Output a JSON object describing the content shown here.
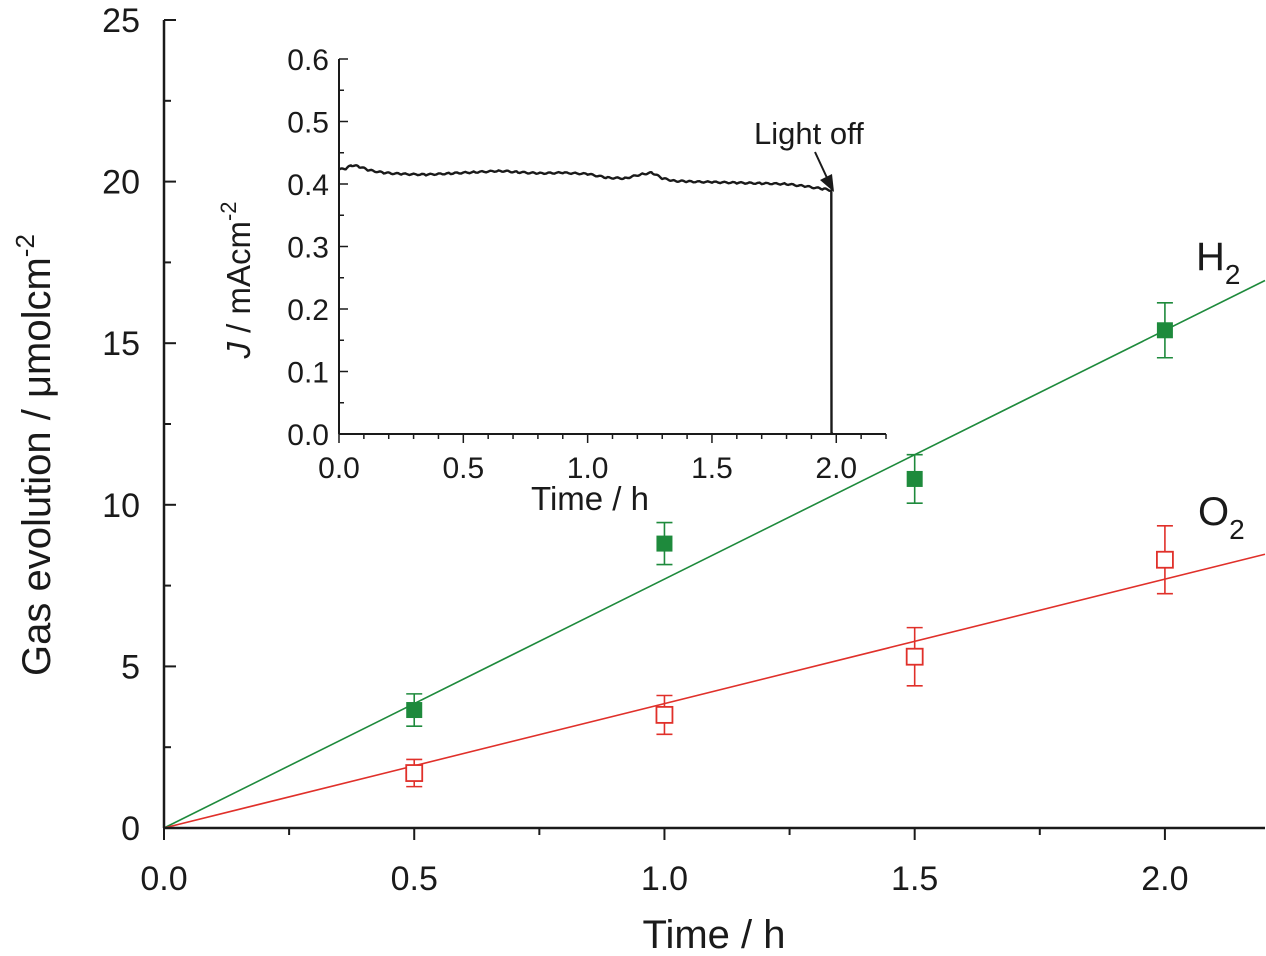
{
  "chart_data": [
    {
      "type": "scatter",
      "title": "",
      "xlabel": "Time / h",
      "ylabel_main": "Gas evolution / μmolcm",
      "ylabel_sup": "-2",
      "xlim": [
        0,
        2.2
      ],
      "ylim": [
        0,
        25
      ],
      "x_ticks": [
        0.0,
        0.5,
        1.0,
        1.5,
        2.0
      ],
      "x_tick_labels": [
        "0.0",
        "0.5",
        "1.0",
        "1.5",
        "2.0"
      ],
      "y_ticks": [
        0,
        5,
        10,
        15,
        20,
        25
      ],
      "y_tick_labels": [
        "0",
        "5",
        "10",
        "15",
        "20",
        "25"
      ],
      "grid": false,
      "series": [
        {
          "label_main": "H",
          "label_sub": "2",
          "marker": "filled-square",
          "color": "#1e8a3c",
          "x": [
            0.5,
            1.0,
            1.5,
            2.0
          ],
          "y": [
            3.65,
            8.8,
            10.8,
            15.4
          ],
          "err": [
            0.5,
            0.65,
            0.75,
            0.85
          ],
          "fit_slope": 7.7
        },
        {
          "label_main": "O",
          "label_sub": "2",
          "marker": "open-square",
          "color": "#e0302a",
          "x": [
            0.5,
            1.0,
            1.5,
            2.0
          ],
          "y": [
            1.7,
            3.5,
            5.3,
            8.3
          ],
          "err": [
            0.42,
            0.6,
            0.9,
            1.05
          ],
          "fit_slope": 3.85
        }
      ]
    },
    {
      "type": "line",
      "title": "",
      "xlabel": "Time / h",
      "ylabel_italic": "J",
      "ylabel_main": " / mAcm",
      "ylabel_sup": "-2",
      "xlim": [
        0,
        2.2
      ],
      "ylim": [
        0,
        0.6
      ],
      "x_ticks": [
        0.0,
        0.5,
        1.0,
        1.5,
        2.0
      ],
      "x_tick_labels": [
        "0.0",
        "0.5",
        "1.0",
        "1.5",
        "2.0"
      ],
      "y_ticks": [
        0.0,
        0.1,
        0.2,
        0.3,
        0.4,
        0.5,
        0.6
      ],
      "y_tick_labels": [
        "0.0",
        "0.1",
        "0.2",
        "0.3",
        "0.4",
        "0.5",
        "0.6"
      ],
      "color": "#1a1a1a",
      "x": [
        0.0,
        0.03,
        0.05,
        0.08,
        0.12,
        0.18,
        0.25,
        0.35,
        0.45,
        0.55,
        0.65,
        0.72,
        0.8,
        0.9,
        1.0,
        1.08,
        1.15,
        1.22,
        1.26,
        1.3,
        1.35,
        1.4,
        1.5,
        1.6,
        1.7,
        1.8,
        1.88,
        1.95,
        1.98,
        1.981,
        1.985
      ],
      "y": [
        0.423,
        0.425,
        0.43,
        0.428,
        0.422,
        0.418,
        0.416,
        0.415,
        0.417,
        0.419,
        0.421,
        0.419,
        0.417,
        0.418,
        0.416,
        0.41,
        0.409,
        0.416,
        0.418,
        0.409,
        0.405,
        0.404,
        0.403,
        0.402,
        0.401,
        0.4,
        0.396,
        0.392,
        0.39,
        0.0,
        0.0
      ],
      "annotation": "Light off",
      "annotation_x": 1.98,
      "annotation_y": 0.39
    }
  ]
}
